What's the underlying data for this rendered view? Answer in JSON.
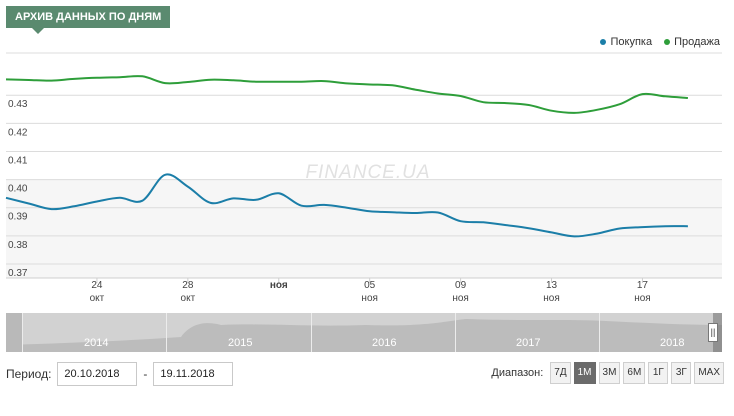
{
  "header": {
    "tag": "АРХИВ ДАННЫХ ПО ДНЯМ"
  },
  "legend": [
    {
      "label": "Покупка",
      "color": "#1b7ea8"
    },
    {
      "label": "Продажа",
      "color": "#2e9e3a"
    }
  ],
  "watermark": "FINANCE.UA",
  "chart_data": {
    "type": "line",
    "title": "",
    "xlabel": "",
    "ylabel": "",
    "ylim": [
      0.365,
      0.445
    ],
    "yticks": [
      "0.37",
      "0.38",
      "0.39",
      "0.40",
      "0.41",
      "0.42",
      "0.43"
    ],
    "yticks_values": [
      0.37,
      0.38,
      0.39,
      0.4,
      0.41,
      0.42,
      0.43
    ],
    "xticks": [
      {
        "x": 24,
        "day": "24",
        "month": "окт"
      },
      {
        "x": 28,
        "day": "28",
        "month": "окт"
      },
      {
        "x": 32,
        "day": "ноя",
        "month": ""
      },
      {
        "x": 36,
        "day": "05",
        "month": "ноя"
      },
      {
        "x": 40,
        "day": "09",
        "month": "ноя"
      },
      {
        "x": 44,
        "day": "13",
        "month": "ноя"
      },
      {
        "x": 48,
        "day": "17",
        "month": "ноя"
      }
    ],
    "x_note": "x = day index counted from 1 Oct 2018",
    "xlim": [
      20,
      51.5
    ],
    "series": [
      {
        "name": "Покупка",
        "color": "#1b7ea8",
        "x": [
          20,
          21,
          22,
          23,
          24,
          25,
          26,
          27,
          28,
          29,
          30,
          31,
          32,
          33,
          34,
          35,
          36,
          37,
          38,
          39,
          40,
          41,
          42,
          43,
          44,
          45,
          46,
          47,
          48,
          49,
          50
        ],
        "values": [
          0.3935,
          0.3915,
          0.3895,
          0.3905,
          0.3922,
          0.3935,
          0.3925,
          0.4017,
          0.3975,
          0.3917,
          0.3933,
          0.3928,
          0.3951,
          0.3907,
          0.391,
          0.39,
          0.3887,
          0.3884,
          0.3881,
          0.3883,
          0.3852,
          0.3848,
          0.3838,
          0.3827,
          0.3812,
          0.3798,
          0.3808,
          0.3826,
          0.3831,
          0.3834,
          0.3834
        ]
      },
      {
        "name": "Продажа",
        "color": "#2e9e3a",
        "x": [
          20,
          21,
          22,
          23,
          24,
          25,
          26,
          27,
          28,
          29,
          30,
          31,
          32,
          33,
          34,
          35,
          36,
          37,
          38,
          39,
          40,
          41,
          42,
          43,
          44,
          45,
          46,
          47,
          48,
          49,
          50
        ],
        "values": [
          0.4356,
          0.4354,
          0.4352,
          0.4358,
          0.4362,
          0.4364,
          0.4367,
          0.4343,
          0.4347,
          0.4355,
          0.4353,
          0.4348,
          0.4348,
          0.4348,
          0.435,
          0.4342,
          0.4338,
          0.4335,
          0.432,
          0.4306,
          0.4297,
          0.4275,
          0.4272,
          0.4265,
          0.4245,
          0.4237,
          0.4248,
          0.4268,
          0.4304,
          0.4296,
          0.429
        ]
      }
    ],
    "grid": true,
    "legend_position": "top-right"
  },
  "navigator": {
    "years": [
      "2014",
      "2015",
      "2016",
      "2017",
      "2018"
    ],
    "handle_icon": "grip-icon"
  },
  "controls": {
    "period_label": "Период:",
    "date_from": "20.10.2018",
    "dash": "-",
    "date_to": "19.11.2018",
    "range_label": "Диапазон:",
    "ranges": [
      "7Д",
      "1М",
      "3М",
      "6М",
      "1Г",
      "3Г",
      "MAX"
    ],
    "active_range": "1М"
  }
}
